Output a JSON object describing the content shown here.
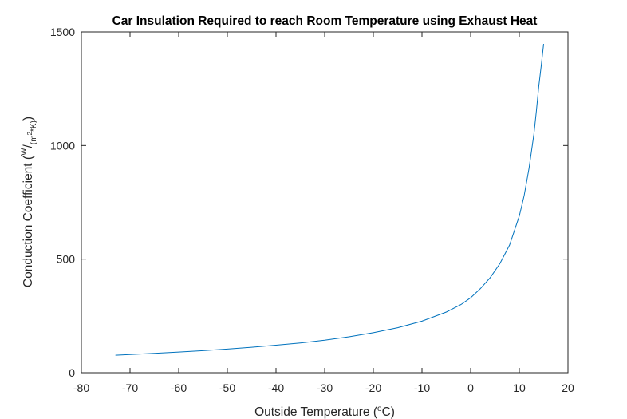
{
  "chart_data": {
    "type": "line",
    "title": "Car Insulation Required to reach Room Temperature using Exhaust Heat",
    "xlabel": {
      "text": "Outside Temperature (",
      "superscript": "o",
      "suffix": "C)"
    },
    "ylabel": {
      "text": "Conduction Coefficient (",
      "numerator": "W",
      "slash": "/",
      "denominator": "(m",
      "denominator_sup": "2",
      "denominator_suffix": "*K)",
      "suffix": ")"
    },
    "xlim": [
      -80,
      20
    ],
    "ylim": [
      0,
      1500
    ],
    "xticks": [
      -80,
      -70,
      -60,
      -50,
      -40,
      -30,
      -20,
      -10,
      0,
      10,
      20
    ],
    "xtick_labels": [
      "-80",
      "-70",
      "-60",
      "-50",
      "-40",
      "-30",
      "-20",
      "-10",
      "0",
      "10",
      "20"
    ],
    "yticks": [
      0,
      500,
      1000,
      1500
    ],
    "ytick_labels": [
      "0",
      "500",
      "1000",
      "1500"
    ],
    "grid": false,
    "box": true,
    "line_color": "#0072BD",
    "series": [
      {
        "x": [
          -73,
          -70,
          -65,
          -60,
          -55,
          -50,
          -45,
          -40,
          -35,
          -30,
          -25,
          -20,
          -15,
          -10,
          -5,
          -2,
          0,
          2,
          4,
          6,
          8,
          10,
          11,
          12,
          13,
          13.5,
          14,
          14.5,
          15
        ],
        "y": [
          77,
          80,
          85,
          91,
          97,
          104,
          112,
          121,
          131,
          143,
          158,
          176,
          198,
          227,
          267,
          300,
          330,
          370,
          418,
          480,
          562,
          690,
          780,
          900,
          1050,
          1150,
          1260,
          1350,
          1447
        ]
      }
    ]
  }
}
